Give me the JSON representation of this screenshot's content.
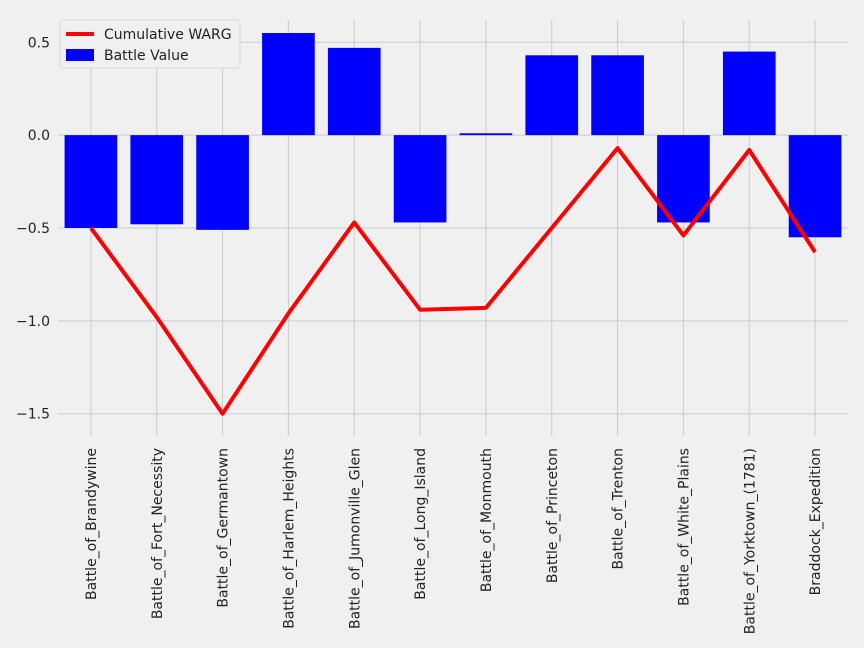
{
  "chart_data": {
    "type": "bar",
    "title": "",
    "xlabel": "",
    "ylabel": "",
    "categories": [
      "Battle_of_Brandywine",
      "Battle_of_Fort_Necessity",
      "Battle_of_Germantown",
      "Battle_of_Harlem_Heights",
      "Battle_of_Jumonville_Glen",
      "Battle_of_Long_Island",
      "Battle_of_Monmouth",
      "Battle_of_Princeton",
      "Battle_of_Trenton",
      "Battle_of_White_Plains",
      "Battle_of_Yorktown_(1781)",
      "Braddock_Expedition"
    ],
    "series": [
      {
        "name": "Battle Value",
        "kind": "bar",
        "color": "#0000ff",
        "values": [
          -0.5,
          -0.48,
          -0.51,
          0.55,
          0.47,
          -0.47,
          0.01,
          0.43,
          0.43,
          -0.47,
          0.45,
          -0.55
        ]
      },
      {
        "name": "Cumulative WARG",
        "kind": "line",
        "color": "#ff0000",
        "values": [
          -0.5,
          -0.98,
          -1.5,
          -0.96,
          -0.47,
          -0.94,
          -0.93,
          -0.5,
          -0.07,
          -0.54,
          -0.08,
          -0.63
        ]
      }
    ],
    "ylim": [
      -1.62,
      0.62
    ],
    "yticks": [
      -1.5,
      -1.0,
      -0.5,
      0.0,
      0.5
    ],
    "ytick_labels": [
      "−1.5",
      "−1.0",
      "−0.5",
      "0.0",
      "0.5"
    ],
    "grid": true,
    "legend_position": "top-left",
    "legend_order": [
      "Cumulative WARG",
      "Battle Value"
    ]
  }
}
